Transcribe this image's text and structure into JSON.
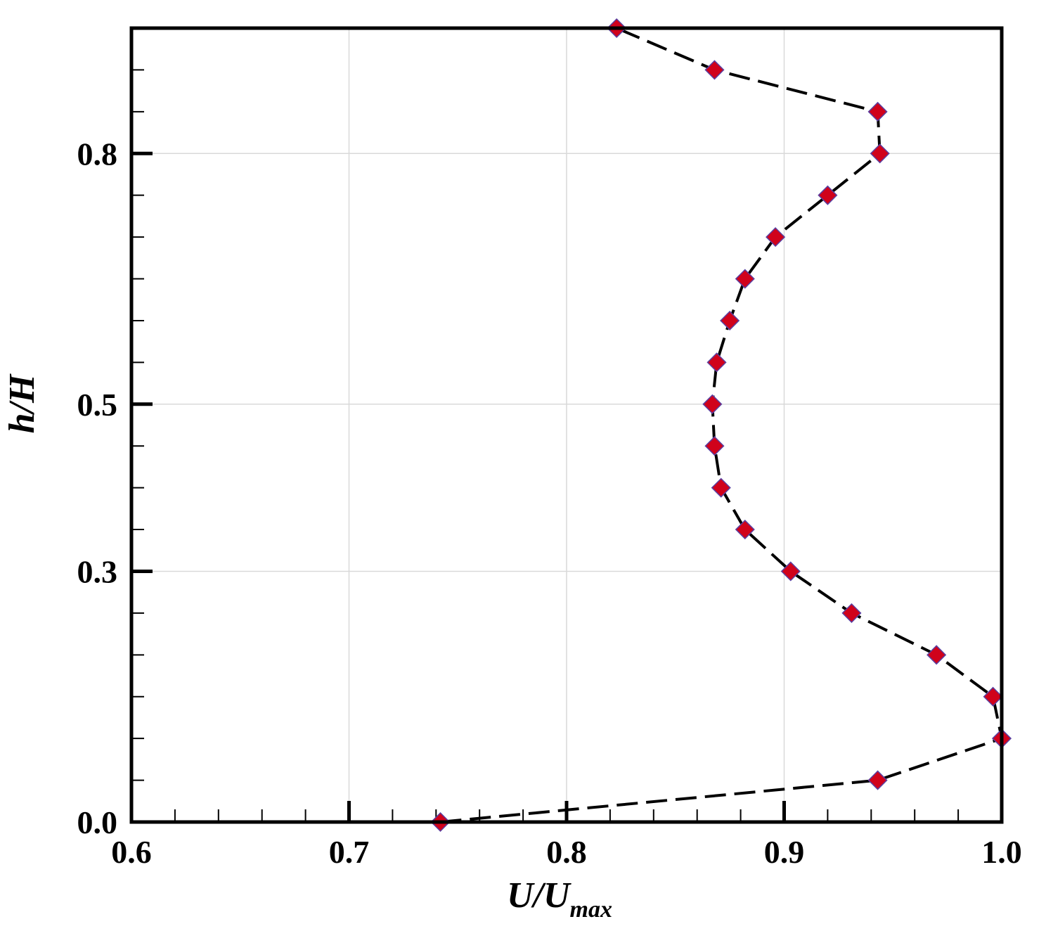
{
  "chart_data": {
    "type": "line",
    "title": "",
    "xlabel": "U/U",
    "xlabel_subscript": "max",
    "ylabel": "h/H",
    "xlim": [
      0.6,
      1.0
    ],
    "ylim": [
      0.0,
      0.95
    ],
    "x_ticks": [
      0.6,
      0.7,
      0.8,
      0.9,
      1.0
    ],
    "x_tick_labels": [
      "0.6",
      "0.7",
      "0.8",
      "0.9",
      "1.0"
    ],
    "y_ticks": [
      0.0,
      0.3,
      0.5,
      0.8
    ],
    "y_tick_labels": [
      "0.0",
      "0.3",
      "0.5",
      "0.8"
    ],
    "grid": true,
    "line_style": "dashed",
    "line_color": "#000000",
    "marker": "diamond",
    "marker_fill": "#d0021b",
    "marker_edge": "#5a3fa0",
    "series": [
      {
        "x": [
          0.742,
          0.943,
          1.0,
          0.996,
          0.97,
          0.931,
          0.903,
          0.882,
          0.871,
          0.868,
          0.867,
          0.869,
          0.875,
          0.882,
          0.896,
          0.92,
          0.944,
          0.943,
          0.868,
          0.823
        ],
        "y": [
          0.0,
          0.05,
          0.1,
          0.15,
          0.2,
          0.25,
          0.3,
          0.35,
          0.4,
          0.45,
          0.5,
          0.55,
          0.6,
          0.65,
          0.7,
          0.75,
          0.8,
          0.85,
          0.9,
          0.95
        ]
      }
    ]
  }
}
